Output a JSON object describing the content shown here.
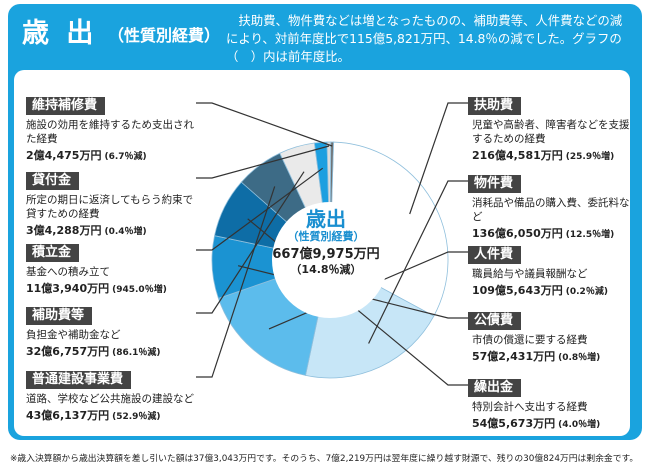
{
  "header": {
    "title": "歳 出",
    "subtitle": "（性質別経費）",
    "description": "扶助費、物件費などは増となったものの、補助費等、人件費などの減により、対前年度比で115億5,821万円、14.8％の減でした。グラフの（　）内は前年度比。"
  },
  "center": {
    "title": "歳出",
    "subtitle": "（性質別経費）",
    "total": "667億9,975万円",
    "change": "（14.8％減）"
  },
  "colors": {
    "panel": "#1aa3de",
    "tag": "#444444",
    "leader": "#333333"
  },
  "items": [
    {
      "label": "扶助費",
      "desc": "児童や高齢者、障害者などを支援するための経費",
      "amount": "216億4,581万円",
      "change": "(25.9％増)",
      "color": "#ffffff"
    },
    {
      "label": "物件費",
      "desc": "消耗品や備品の購入費、委託料など",
      "amount": "136億6,050万円",
      "change": "(12.5％増)",
      "color": "#c7e6f7"
    },
    {
      "label": "人件費",
      "desc": "職員給与や議員報酬など",
      "amount": "109億5,643万円",
      "change": "(0.2％減)",
      "color": "#5cbcec"
    },
    {
      "label": "公債費",
      "desc": "市債の償還に要する経費",
      "amount": "57億2,431万円",
      "change": "(0.8％増)",
      "color": "#1b93d2"
    },
    {
      "label": "繰出金",
      "desc": "特別会計へ支出する経費",
      "amount": "54億5,673万円",
      "change": "(4.0％増)",
      "color": "#0e6da6"
    },
    {
      "label": "普通建設事業費",
      "desc": "道路、学校など公共施設の建設など",
      "amount": "43億6,137万円",
      "change": "(52.9％減)",
      "color": "#3d6b86"
    },
    {
      "label": "補助費等",
      "desc": "負担金や補助金など",
      "amount": "32億6,757万円",
      "change": "(86.1％減)",
      "color": "#eaeaea"
    },
    {
      "label": "積立金",
      "desc": "基金への積み立て",
      "amount": "11億3,940万円",
      "change": "(945.0％増)",
      "color": "#1d9fe0"
    },
    {
      "label": "貸付金",
      "desc": "所定の期日に返済してもらう約束で貸すための経費",
      "amount": "3億4,288万円",
      "change": "(0.4％増)",
      "color": "#dcdcdc"
    },
    {
      "label": "維持補修費",
      "desc": "施設の効用を維持するため支出された経費",
      "amount": "2億4,475万円",
      "change": "(6.7％減)",
      "color": "#707070"
    }
  ],
  "chart_data": {
    "type": "pie",
    "title": "歳出",
    "unit": "万円",
    "categories": [
      "扶助費",
      "物件費",
      "人件費",
      "公債費",
      "繰出金",
      "普通建設事業費",
      "補助費等",
      "積立金",
      "貸付金",
      "維持補修費"
    ],
    "values": [
      2164581,
      1366050,
      1095643,
      572431,
      545673,
      436137,
      326757,
      113940,
      34288,
      24475
    ],
    "total": 6679975
  },
  "footnote": "※歳入決算額から歳出決算額を差し引いた額は37億3,043万円です。そのうち、7億2,219万円は翌年度に繰り越す財源で、残りの30億824万円は剰余金です。"
}
